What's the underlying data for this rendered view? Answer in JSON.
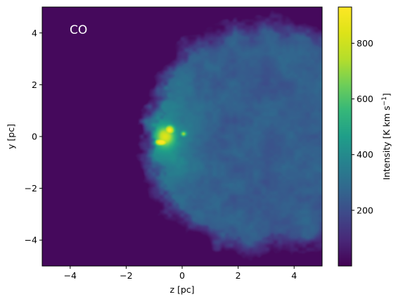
{
  "chart_data": {
    "type": "heatmap",
    "title": "",
    "annotation": "CO",
    "xlabel": "z [pc]",
    "ylabel": "y [pc]",
    "xlim": [
      -5,
      5
    ],
    "ylim": [
      -5,
      5
    ],
    "xticks": [
      -4,
      -2,
      0,
      2,
      4
    ],
    "yticks": [
      -4,
      -2,
      0,
      2,
      4
    ],
    "xtick_labels": [
      "−4",
      "−2",
      "0",
      "2",
      "4"
    ],
    "ytick_labels": [
      "−4",
      "−2",
      "0",
      "2",
      "4"
    ],
    "colormap": "viridis",
    "colorbar": {
      "label": "Intensity [K km s",
      "label_superscript": "−1",
      "label_end": "]",
      "range": [
        0,
        930
      ],
      "ticks": [
        200,
        400,
        600,
        800
      ],
      "tick_labels": [
        "200",
        "400",
        "600",
        "800"
      ]
    },
    "features": [
      {
        "type": "background",
        "value": 20
      },
      {
        "type": "shell",
        "center": [
          3.0,
          0.0
        ],
        "radius": 4.3,
        "interior_value": 250,
        "outer_edge_value": 170
      },
      {
        "type": "bright_clump",
        "center": [
          -0.6,
          0.0
        ],
        "peak_value": 920
      }
    ]
  },
  "colors": {
    "viridis_low": "#440154",
    "viridis_mid": "#21918c",
    "viridis_high": "#fde725"
  }
}
